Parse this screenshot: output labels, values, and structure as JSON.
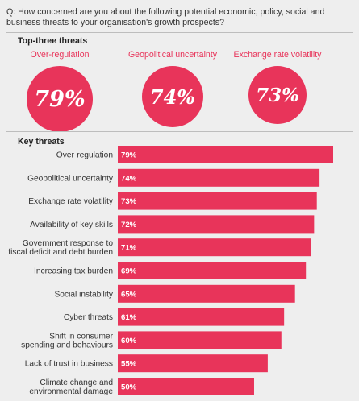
{
  "question": "Q: How concerned are you about the following potential economic, policy, social and business threats to your organisation's growth prospects?",
  "top_three": {
    "title": "Top-three threats",
    "items": [
      {
        "label": "Over-regulation",
        "value": "79%"
      },
      {
        "label": "Geopolitical uncertainty",
        "value": "74%"
      },
      {
        "label": "Exchange rate volatility",
        "value": "73%"
      }
    ]
  },
  "colors": {
    "accent": "#e8345a",
    "background": "#eeeeee"
  },
  "chart_data": {
    "type": "bar",
    "orientation": "horizontal",
    "title": "Key threats",
    "categories": [
      [
        "Over-regulation"
      ],
      [
        "Geopolitical uncertainty"
      ],
      [
        "Exchange rate volatility"
      ],
      [
        "Availability of key skills"
      ],
      [
        "Government response to",
        "fiscal deficit and debt burden"
      ],
      [
        "Increasing tax burden"
      ],
      [
        "Social instability"
      ],
      [
        "Cyber threats"
      ],
      [
        "Shift in consumer",
        "spending and behaviours"
      ],
      [
        "Lack of trust in business"
      ],
      [
        "Climate change and",
        "environmental damage"
      ]
    ],
    "values": [
      79,
      74,
      73,
      72,
      71,
      69,
      65,
      61,
      60,
      55,
      50
    ],
    "value_labels": [
      "79%",
      "74%",
      "73%",
      "72%",
      "71%",
      "69%",
      "65%",
      "61%",
      "60%",
      "55%",
      "50%"
    ],
    "unit": "%",
    "color": "#e8345a"
  }
}
